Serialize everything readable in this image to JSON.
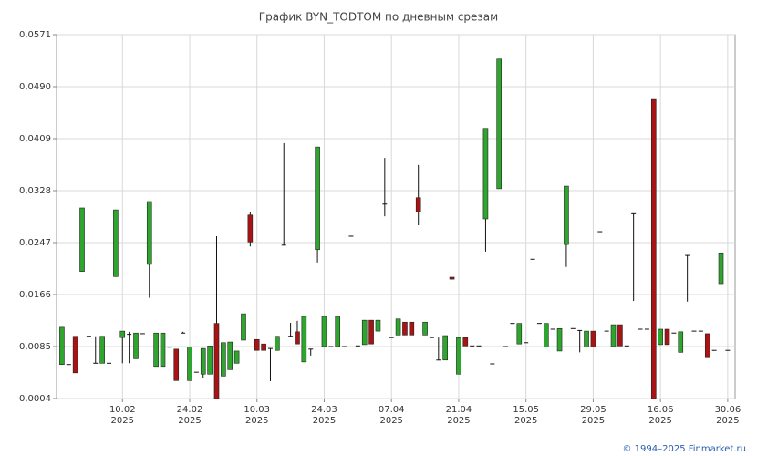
{
  "chart_data": {
    "type": "candlestick",
    "title": "График BYN_TODTOM по дневным срезам",
    "footer": "© 1994–2025 Finmarket.ru",
    "up_color": "#2ea62e",
    "down_color": "#a81414",
    "grid": true,
    "ylim": [
      0.0004,
      0.0571
    ],
    "yticks": [
      {
        "value": 0.0004,
        "label": "0,0004"
      },
      {
        "value": 0.0085,
        "label": "0,0085"
      },
      {
        "value": 0.0166,
        "label": "0,0166"
      },
      {
        "value": 0.0247,
        "label": "0,0247"
      },
      {
        "value": 0.0328,
        "label": "0,0328"
      },
      {
        "value": 0.0409,
        "label": "0,0409"
      },
      {
        "value": 0.049,
        "label": "0,0490"
      },
      {
        "value": 0.0571,
        "label": "0,0571"
      }
    ],
    "xlim": [
      -0.8,
      100.1
    ],
    "xticks": [
      {
        "value": 9,
        "label": [
          "10.02",
          "2025"
        ]
      },
      {
        "value": 19,
        "label": [
          "24.02",
          "2025"
        ]
      },
      {
        "value": 29,
        "label": [
          "10.03",
          "2025"
        ]
      },
      {
        "value": 39,
        "label": [
          "24.03",
          "2025"
        ]
      },
      {
        "value": 49,
        "label": [
          "07.04",
          "2025"
        ]
      },
      {
        "value": 59,
        "label": [
          "21.04",
          "2025"
        ]
      },
      {
        "value": 69,
        "label": [
          "15.05",
          "2025"
        ]
      },
      {
        "value": 79,
        "label": [
          "29.05",
          "2025"
        ]
      },
      {
        "value": 89,
        "label": [
          "16.06",
          "2025"
        ]
      },
      {
        "value": 99,
        "label": [
          "30.06",
          "2025"
        ]
      }
    ],
    "x": [
      0,
      1,
      2,
      3,
      4,
      5,
      6,
      7,
      8,
      9,
      10,
      11,
      12,
      13,
      14,
      15,
      16,
      17,
      18,
      19,
      20,
      21,
      22,
      23,
      24,
      25,
      26,
      27,
      28,
      29,
      30,
      31,
      32,
      33,
      34,
      35,
      36,
      37,
      38,
      39,
      40,
      41,
      42,
      43,
      44,
      45,
      46,
      47,
      48,
      49,
      50,
      51,
      52,
      53,
      54,
      55,
      56,
      57,
      58,
      59,
      60,
      61,
      62,
      63,
      64,
      65,
      66,
      67,
      68,
      69,
      70,
      71,
      72,
      73,
      74,
      75,
      76,
      77,
      78,
      79,
      80,
      81,
      82,
      83,
      84,
      85,
      86,
      87,
      88,
      89,
      90,
      91,
      92,
      93,
      94,
      95,
      96,
      97,
      98,
      99
    ],
    "open": [
      0.0057,
      0.0057,
      0.0101,
      0.0202,
      0.0101,
      0.0059,
      0.0059,
      0.0059,
      0.0194,
      0.0099,
      0.0104,
      0.0066,
      0.0105,
      0.0213,
      0.0054,
      0.0054,
      0.0084,
      0.0081,
      0.0106,
      0.0032,
      0.0045,
      0.0042,
      0.0042,
      0.0121,
      0.0039,
      0.0049,
      0.0059,
      0.0095,
      0.029,
      0.0096,
      0.0089,
      0.0082,
      0.0079,
      0.0243,
      0.0101,
      0.0108,
      0.0061,
      0.0081,
      0.0236,
      0.0085,
      0.0085,
      0.0085,
      0.0085,
      0.0257,
      0.0086,
      0.0088,
      0.0126,
      0.0109,
      0.0307,
      0.0099,
      0.0103,
      0.0123,
      0.0123,
      0.0317,
      0.0103,
      0.0099,
      0.0064,
      0.0064,
      0.0193,
      0.0042,
      0.0099,
      0.0086,
      0.0086,
      0.0284,
      0.0058,
      0.0331,
      0.0085,
      0.0121,
      0.0089,
      0.0091,
      0.0221,
      0.0121,
      0.0084,
      0.0112,
      0.0078,
      0.0244,
      0.0113,
      0.011,
      0.0084,
      0.0109,
      0.0264,
      0.0109,
      0.0085,
      0.0119,
      0.0086,
      0.0292,
      0.0112,
      0.0112,
      0.047,
      0.0088,
      0.0112,
      0.0106,
      0.0076,
      0.0227,
      0.0109,
      0.0109,
      0.0105,
      0.0079,
      0.0183,
      0.0079
    ],
    "high": [
      0.0115,
      0.0057,
      0.0101,
      0.0301,
      0.0101,
      0.0101,
      0.0101,
      0.0105,
      0.0298,
      0.0109,
      0.0108,
      0.0106,
      0.0105,
      0.0311,
      0.0106,
      0.0106,
      0.0084,
      0.0081,
      0.0108,
      0.0084,
      0.0045,
      0.0082,
      0.0086,
      0.0257,
      0.0091,
      0.0092,
      0.0078,
      0.0136,
      0.0295,
      0.0096,
      0.0089,
      0.0082,
      0.0101,
      0.0402,
      0.0122,
      0.0125,
      0.0132,
      0.0081,
      0.0396,
      0.0132,
      0.0085,
      0.0132,
      0.0085,
      0.0257,
      0.0086,
      0.0126,
      0.0126,
      0.0126,
      0.0379,
      0.0099,
      0.0128,
      0.0123,
      0.0123,
      0.0368,
      0.0123,
      0.0099,
      0.0099,
      0.0102,
      0.0193,
      0.0099,
      0.0099,
      0.0086,
      0.0086,
      0.0425,
      0.0058,
      0.0533,
      0.0085,
      0.0121,
      0.0121,
      0.0091,
      0.0221,
      0.0121,
      0.0121,
      0.0112,
      0.0113,
      0.0335,
      0.0113,
      0.011,
      0.0109,
      0.0109,
      0.0264,
      0.0109,
      0.0119,
      0.0119,
      0.0086,
      0.0292,
      0.0112,
      0.0112,
      0.047,
      0.0112,
      0.0112,
      0.0106,
      0.0108,
      0.0227,
      0.0109,
      0.0109,
      0.0105,
      0.0079,
      0.0231,
      0.0079
    ],
    "low": [
      0.0057,
      0.0057,
      0.0044,
      0.0202,
      0.0101,
      0.0059,
      0.0059,
      0.0059,
      0.0194,
      0.0059,
      0.0059,
      0.0066,
      0.0105,
      0.0161,
      0.0054,
      0.0054,
      0.0084,
      0.0032,
      0.0106,
      0.0032,
      0.0045,
      0.0036,
      0.0042,
      0.0004,
      0.0039,
      0.0049,
      0.0059,
      0.0095,
      0.0241,
      0.0079,
      0.0079,
      0.0031,
      0.0079,
      0.0243,
      0.0101,
      0.0089,
      0.0061,
      0.0071,
      0.0216,
      0.0085,
      0.0085,
      0.0085,
      0.0085,
      0.0257,
      0.0086,
      0.0088,
      0.0089,
      0.0109,
      0.0288,
      0.0099,
      0.0103,
      0.0103,
      0.0103,
      0.0274,
      0.0103,
      0.0099,
      0.0064,
      0.0064,
      0.019,
      0.0042,
      0.0086,
      0.0086,
      0.0086,
      0.0233,
      0.0058,
      0.0331,
      0.0085,
      0.0121,
      0.0089,
      0.0091,
      0.0221,
      0.0121,
      0.0084,
      0.0112,
      0.0078,
      0.0209,
      0.0113,
      0.0076,
      0.0084,
      0.0084,
      0.0264,
      0.0109,
      0.0085,
      0.0086,
      0.0086,
      0.0156,
      0.0112,
      0.0112,
      0.0004,
      0.0088,
      0.0088,
      0.0106,
      0.0076,
      0.0155,
      0.0109,
      0.0109,
      0.0069,
      0.0079,
      0.0183,
      0.0079
    ],
    "close": [
      0.0115,
      0.0057,
      0.0044,
      0.0301,
      0.0101,
      0.0059,
      0.0101,
      0.0059,
      0.0298,
      0.0109,
      0.0104,
      0.0106,
      0.0105,
      0.0311,
      0.0106,
      0.0106,
      0.0084,
      0.0032,
      0.0106,
      0.0084,
      0.0045,
      0.0082,
      0.0086,
      0.0004,
      0.0091,
      0.0092,
      0.0078,
      0.0136,
      0.0248,
      0.0079,
      0.0079,
      0.0082,
      0.0101,
      0.0243,
      0.0101,
      0.0089,
      0.0132,
      0.0081,
      0.0396,
      0.0132,
      0.0085,
      0.0132,
      0.0085,
      0.0257,
      0.0086,
      0.0126,
      0.0089,
      0.0126,
      0.0307,
      0.0099,
      0.0128,
      0.0103,
      0.0103,
      0.0295,
      0.0123,
      0.0099,
      0.0064,
      0.0102,
      0.019,
      0.0099,
      0.0086,
      0.0086,
      0.0086,
      0.0425,
      0.0058,
      0.0533,
      0.0085,
      0.0121,
      0.0121,
      0.0091,
      0.0221,
      0.0121,
      0.0121,
      0.0112,
      0.0113,
      0.0335,
      0.0113,
      0.011,
      0.0109,
      0.0084,
      0.0264,
      0.0109,
      0.0119,
      0.0086,
      0.0086,
      0.0292,
      0.0112,
      0.0112,
      0.0004,
      0.0112,
      0.0088,
      0.0106,
      0.0108,
      0.0227,
      0.0109,
      0.0109,
      0.0069,
      0.0079,
      0.0231,
      0.0079
    ]
  }
}
